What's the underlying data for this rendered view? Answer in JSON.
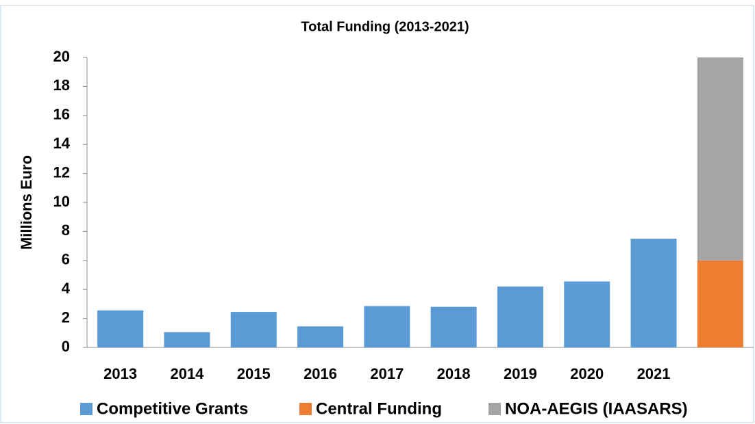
{
  "chart_data": {
    "type": "stacked_bar",
    "title": "Total Funding (2013-2021)",
    "y_label": "Millions Euro",
    "categories": [
      "2013",
      "2014",
      "2015",
      "2016",
      "2017",
      "2018",
      "2019",
      "2020",
      "2021",
      null
    ],
    "series": [
      {
        "name": "Competitive Grants",
        "color": "#5b9bd5",
        "values": [
          2.55,
          1.05,
          2.45,
          1.45,
          2.85,
          2.8,
          4.2,
          4.55,
          7.5,
          null
        ]
      },
      {
        "name": "Central Funding",
        "color": "#ed7d31",
        "values": [
          null,
          null,
          null,
          null,
          null,
          null,
          null,
          null,
          null,
          6
        ]
      },
      {
        "name": "NOA-AEGIS (IAASARS)",
        "color": "#a5a5a5",
        "values": [
          null,
          null,
          null,
          null,
          null,
          null,
          null,
          null,
          null,
          14
        ]
      }
    ],
    "ylim": [
      0,
      20
    ],
    "yticks": [
      0,
      2,
      4,
      6,
      8,
      10,
      12,
      14,
      16,
      18,
      20
    ],
    "legend": "bottom"
  }
}
